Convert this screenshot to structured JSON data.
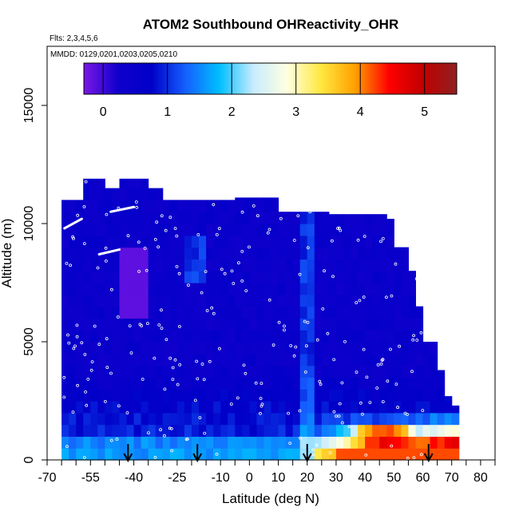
{
  "chart_data": {
    "type": "heatmap",
    "title": "ATOM2 Southbound OHReactivity_OHR",
    "flights_label": "Flts: 2,3,4,5,6",
    "dates_label": "MMDD: 0129,0201,0203,0205,0210",
    "xlabel": "Latitude (deg N)",
    "ylabel": "Altitude (m)",
    "xlim": [
      -70,
      85
    ],
    "ylim": [
      0,
      17500
    ],
    "x_ticks": [
      -70,
      -55,
      -40,
      -25,
      -10,
      0,
      10,
      20,
      30,
      40,
      50,
      60,
      70,
      80
    ],
    "x_minor_ticks": [
      -65,
      -60,
      -50,
      -45,
      -35,
      -30,
      -20,
      -15,
      -5,
      5,
      15,
      25,
      35,
      45,
      55,
      65,
      75,
      85
    ],
    "y_ticks": [
      0,
      5000,
      10000,
      15000
    ],
    "colorbar": {
      "min": -0.3,
      "max": 5.5,
      "ticks": [
        0,
        1,
        2,
        3,
        4,
        5
      ],
      "stops": [
        "#7b17e6",
        "#1000cc",
        "#0000c8",
        "#1560ff",
        "#00bfff",
        "#c8ecff",
        "#ffffe0",
        "#ffe840",
        "#ffa000",
        "#ff0000",
        "#c00000",
        "#902020"
      ]
    },
    "arrow_latitudes": [
      -42,
      -18,
      20,
      62
    ],
    "colors": {
      "axis": "#000000",
      "marker": "#ffffff"
    }
  }
}
